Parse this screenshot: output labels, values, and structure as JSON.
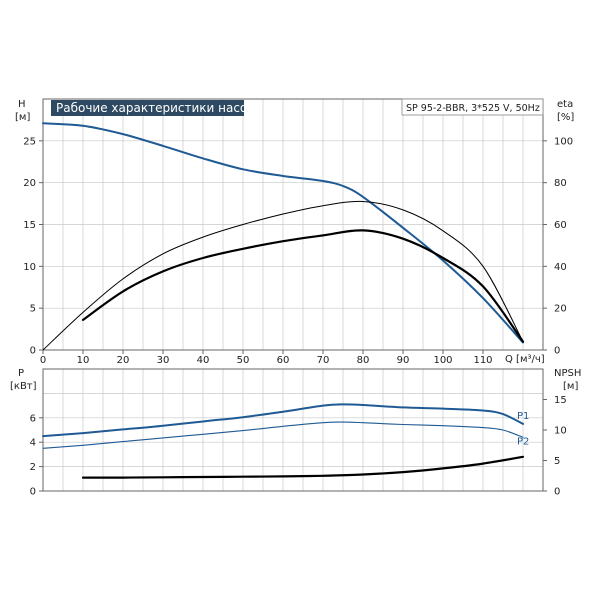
{
  "chart_data": [
    {
      "type": "line",
      "title": "Рабочие характеристики насоса",
      "subtitle": "SP 95-2-BBR, 3*525 V, 50Hz",
      "xlabel": "Q [м³/ч]",
      "xlim": [
        0,
        125
      ],
      "x_ticks": [
        0,
        10,
        20,
        30,
        40,
        50,
        60,
        70,
        80,
        90,
        100,
        110
      ],
      "ylabel_left_top": "H",
      "ylabel_left_unit": "[м]",
      "ylim_left": [
        0,
        30
      ],
      "y_ticks_left": [
        0,
        5,
        10,
        15,
        20,
        25
      ],
      "ylabel_right_top": "eta",
      "ylabel_right_unit": "[%]",
      "ylim_right": [
        0,
        120
      ],
      "y_ticks_right": [
        0,
        20,
        40,
        60,
        80,
        100
      ],
      "series": [
        {
          "name": "",
          "axis": "left",
          "color": "#1f5a94",
          "x": [
            0,
            10,
            20,
            30,
            40,
            50,
            60,
            70,
            75,
            80,
            90,
            100,
            110,
            120
          ],
          "values": [
            27.1,
            26.8,
            25.8,
            24.4,
            22.9,
            21.6,
            20.8,
            20.2,
            19.6,
            18.3,
            14.6,
            10.7,
            6.2,
            0.9
          ]
        },
        {
          "name": "",
          "axis": "left",
          "color": "#000000",
          "x": [
            10,
            20,
            30,
            40,
            50,
            60,
            70,
            80,
            90,
            100,
            110,
            120
          ],
          "values": [
            3.6,
            7.0,
            9.4,
            11.0,
            12.1,
            13.0,
            13.7,
            14.3,
            13.3,
            11.0,
            7.6,
            1.0
          ]
        },
        {
          "name": "",
          "axis": "right",
          "color": "#000000",
          "x": [
            0,
            10,
            20,
            30,
            40,
            50,
            60,
            70,
            80,
            90,
            100,
            110,
            120
          ],
          "values": [
            0,
            18,
            34,
            46,
            54,
            60,
            65,
            69,
            71,
            67,
            57,
            40,
            4
          ]
        }
      ]
    },
    {
      "type": "line",
      "xlim": [
        0,
        125
      ],
      "ylabel_left_top": "P",
      "ylabel_left_unit": "[кВт]",
      "ylim_left": [
        0,
        10
      ],
      "y_ticks_left": [
        0,
        2,
        4,
        6
      ],
      "ylabel_right_top": "NPSH",
      "ylabel_right_unit": "[м]",
      "ylim_right": [
        0,
        20
      ],
      "y_ticks_right": [
        0,
        5,
        10,
        15
      ],
      "series": [
        {
          "name": "P1",
          "axis": "left",
          "color": "#1f5a94",
          "x": [
            0,
            10,
            20,
            30,
            40,
            50,
            60,
            70,
            75,
            80,
            90,
            100,
            110,
            115,
            120
          ],
          "values": [
            4.5,
            4.75,
            5.05,
            5.35,
            5.7,
            6.05,
            6.5,
            7.0,
            7.1,
            7.05,
            6.85,
            6.75,
            6.6,
            6.3,
            5.5
          ]
        },
        {
          "name": "P2",
          "axis": "left",
          "color": "#1f5a94",
          "x": [
            0,
            10,
            20,
            30,
            40,
            50,
            60,
            70,
            75,
            80,
            90,
            100,
            110,
            115,
            120
          ],
          "values": [
            3.5,
            3.75,
            4.05,
            4.35,
            4.65,
            4.95,
            5.3,
            5.6,
            5.65,
            5.6,
            5.45,
            5.35,
            5.2,
            5.0,
            4.4
          ]
        },
        {
          "name": "",
          "axis": "right",
          "color": "#000000",
          "x": [
            10,
            20,
            30,
            40,
            50,
            60,
            70,
            80,
            90,
            100,
            110,
            120
          ],
          "values": [
            2.2,
            2.2,
            2.25,
            2.3,
            2.35,
            2.4,
            2.5,
            2.7,
            3.1,
            3.7,
            4.5,
            5.6
          ]
        }
      ]
    }
  ]
}
